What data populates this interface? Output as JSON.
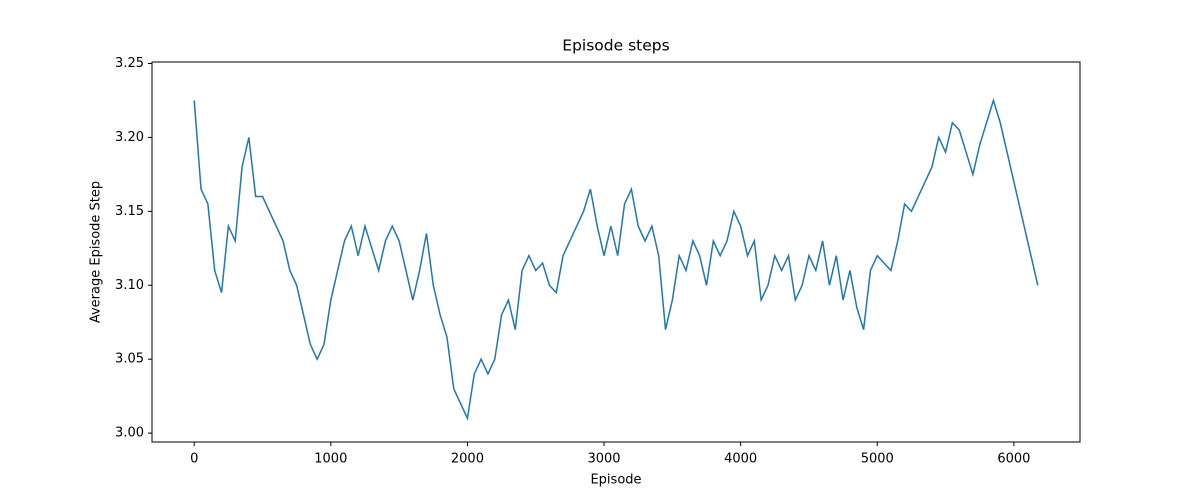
{
  "chart_data": {
    "type": "line",
    "title": "Episode steps",
    "xlabel": "Episode",
    "ylabel": "Average Episode Step",
    "color": "#1f77b4",
    "x": [
      0,
      50,
      100,
      150,
      200,
      250,
      300,
      350,
      400,
      450,
      500,
      550,
      600,
      650,
      700,
      750,
      800,
      850,
      900,
      950,
      1000,
      1050,
      1100,
      1150,
      1200,
      1250,
      1300,
      1350,
      1400,
      1450,
      1500,
      1550,
      1600,
      1650,
      1700,
      1750,
      1800,
      1850,
      1900,
      1950,
      2000,
      2050,
      2100,
      2150,
      2200,
      2250,
      2300,
      2350,
      2400,
      2450,
      2500,
      2550,
      2600,
      2650,
      2700,
      2750,
      2800,
      2850,
      2900,
      2950,
      3000,
      3050,
      3100,
      3150,
      3200,
      3250,
      3300,
      3350,
      3400,
      3450,
      3500,
      3550,
      3600,
      3650,
      3700,
      3750,
      3800,
      3850,
      3900,
      3950,
      4000,
      4050,
      4100,
      4150,
      4200,
      4250,
      4300,
      4350,
      4400,
      4450,
      4500,
      4550,
      4600,
      4650,
      4700,
      4750,
      4800,
      4850,
      4900,
      4950,
      5000,
      5050,
      5100,
      5150,
      5200,
      5250,
      5300,
      5350,
      5400,
      5450,
      5500,
      5550,
      5600,
      5650,
      5700,
      5750,
      5800,
      5850,
      5900,
      5950,
      6000,
      6050,
      6100,
      6150,
      6175
    ],
    "values": [
      3.225,
      3.165,
      3.155,
      3.11,
      3.095,
      3.14,
      3.13,
      3.18,
      3.2,
      3.16,
      3.16,
      3.15,
      3.14,
      3.13,
      3.11,
      3.1,
      3.08,
      3.06,
      3.05,
      3.06,
      3.09,
      3.11,
      3.13,
      3.14,
      3.12,
      3.14,
      3.125,
      3.11,
      3.13,
      3.14,
      3.13,
      3.11,
      3.09,
      3.11,
      3.135,
      3.1,
      3.08,
      3.065,
      3.03,
      3.02,
      3.01,
      3.04,
      3.05,
      3.04,
      3.05,
      3.08,
      3.09,
      3.07,
      3.11,
      3.12,
      3.11,
      3.115,
      3.1,
      3.095,
      3.12,
      3.13,
      3.14,
      3.15,
      3.165,
      3.14,
      3.12,
      3.14,
      3.12,
      3.155,
      3.165,
      3.14,
      3.13,
      3.14,
      3.12,
      3.07,
      3.09,
      3.12,
      3.11,
      3.13,
      3.12,
      3.1,
      3.13,
      3.12,
      3.13,
      3.15,
      3.14,
      3.12,
      3.13,
      3.09,
      3.1,
      3.12,
      3.11,
      3.12,
      3.09,
      3.1,
      3.12,
      3.11,
      3.13,
      3.1,
      3.12,
      3.09,
      3.11,
      3.085,
      3.07,
      3.11,
      3.12,
      3.115,
      3.11,
      3.13,
      3.155,
      3.15,
      3.16,
      3.17,
      3.18,
      3.2,
      3.19,
      3.21,
      3.205,
      3.19,
      3.175,
      3.195,
      3.21,
      3.225,
      3.21,
      3.19,
      3.17,
      3.15,
      3.13,
      3.11,
      3.1
    ],
    "xlim": [
      -309,
      6484
    ],
    "ylim": [
      2.994,
      3.251
    ],
    "xticks": [
      0,
      1000,
      2000,
      3000,
      4000,
      5000,
      6000
    ],
    "yticks": [
      {
        "value": 3.0,
        "label": "3.00"
      },
      3.05,
      {
        "value": 3.1,
        "label": "3.10"
      },
      3.15,
      {
        "value": 3.2,
        "label": "3.20"
      },
      3.25
    ]
  }
}
